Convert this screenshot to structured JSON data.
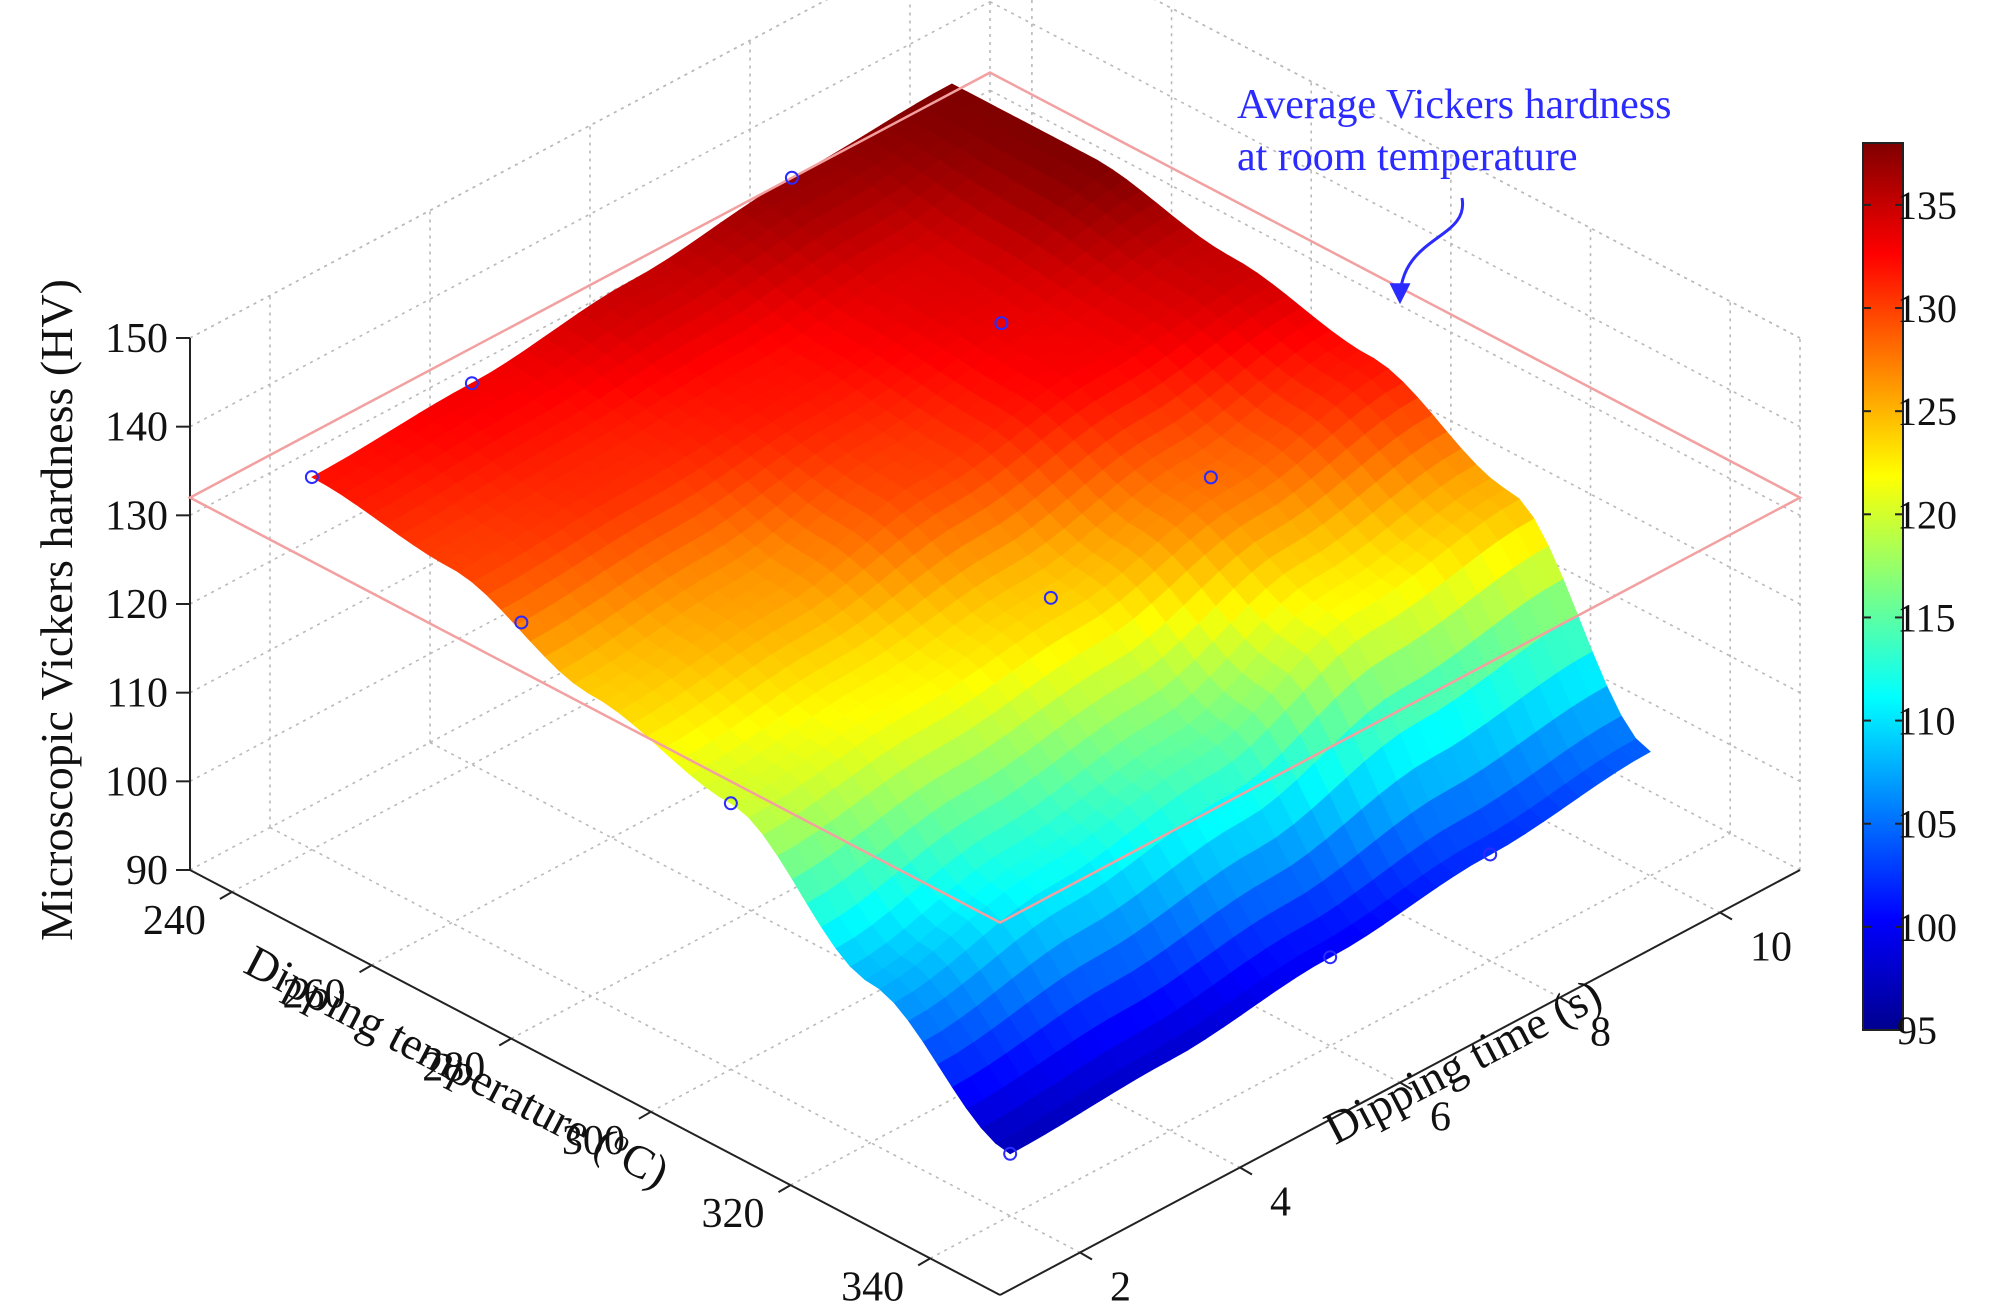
{
  "chart_data": {
    "type": "surface3d",
    "title": "",
    "xlabel_main": "Dipping temperature (",
    "xlabel_unit_sup": "o",
    "xlabel_unit_end": "C)",
    "ylabel": "Dipping time (s)",
    "zlabel": "Microscopic Vickers hardness (HV)",
    "temperatures": [
      240,
      260,
      280,
      300,
      320,
      340
    ],
    "times": [
      2,
      4,
      6,
      8,
      10
    ],
    "x_ticks": [
      "240",
      "260",
      "280",
      "300",
      "320",
      "340"
    ],
    "y_ticks": [
      "2",
      "4",
      "6",
      "8",
      "10"
    ],
    "z_ticks": [
      "90",
      "100",
      "110",
      "120",
      "130",
      "140",
      "150"
    ],
    "xlim": [
      234,
      350
    ],
    "ylim": [
      1,
      11
    ],
    "zlim": [
      90,
      150
    ],
    "grid": true,
    "hardness": [
      [
        132,
        133,
        135,
        137,
        138
      ],
      [
        130,
        131,
        132,
        134,
        138
      ],
      [
        124,
        126,
        130,
        133,
        135
      ],
      [
        120,
        122,
        124,
        128,
        132
      ],
      [
        108,
        112,
        115,
        122,
        125
      ],
      [
        97,
        98,
        100,
        102,
        104
      ]
    ],
    "sample_points": [
      {
        "temperature": 240,
        "time": 2,
        "hardness": 132
      },
      {
        "temperature": 240,
        "time": 4,
        "hardness": 133
      },
      {
        "temperature": 240,
        "time": 8,
        "hardness": 137
      },
      {
        "temperature": 270,
        "time": 2,
        "hardness": 128
      },
      {
        "temperature": 270,
        "time": 8,
        "hardness": 133
      },
      {
        "temperature": 300,
        "time": 2,
        "hardness": 120
      },
      {
        "temperature": 300,
        "time": 6,
        "hardness": 124
      },
      {
        "temperature": 300,
        "time": 8,
        "hardness": 128
      },
      {
        "temperature": 340,
        "time": 2,
        "hardness": 97
      },
      {
        "temperature": 340,
        "time": 6,
        "hardness": 100
      },
      {
        "temperature": 340,
        "time": 8,
        "hardness": 102
      }
    ],
    "reference_plane": {
      "hardness": 132,
      "color": "#f2a0a0"
    },
    "annotation": {
      "line1": "Average Vickers hardness",
      "line2": "at room temperature",
      "color": "#2b2bff"
    },
    "colorbar": {
      "colormap": "jet",
      "range": [
        95,
        138
      ],
      "ticks": [
        "95",
        "100",
        "105",
        "110",
        "115",
        "120",
        "125",
        "130",
        "135"
      ]
    }
  }
}
